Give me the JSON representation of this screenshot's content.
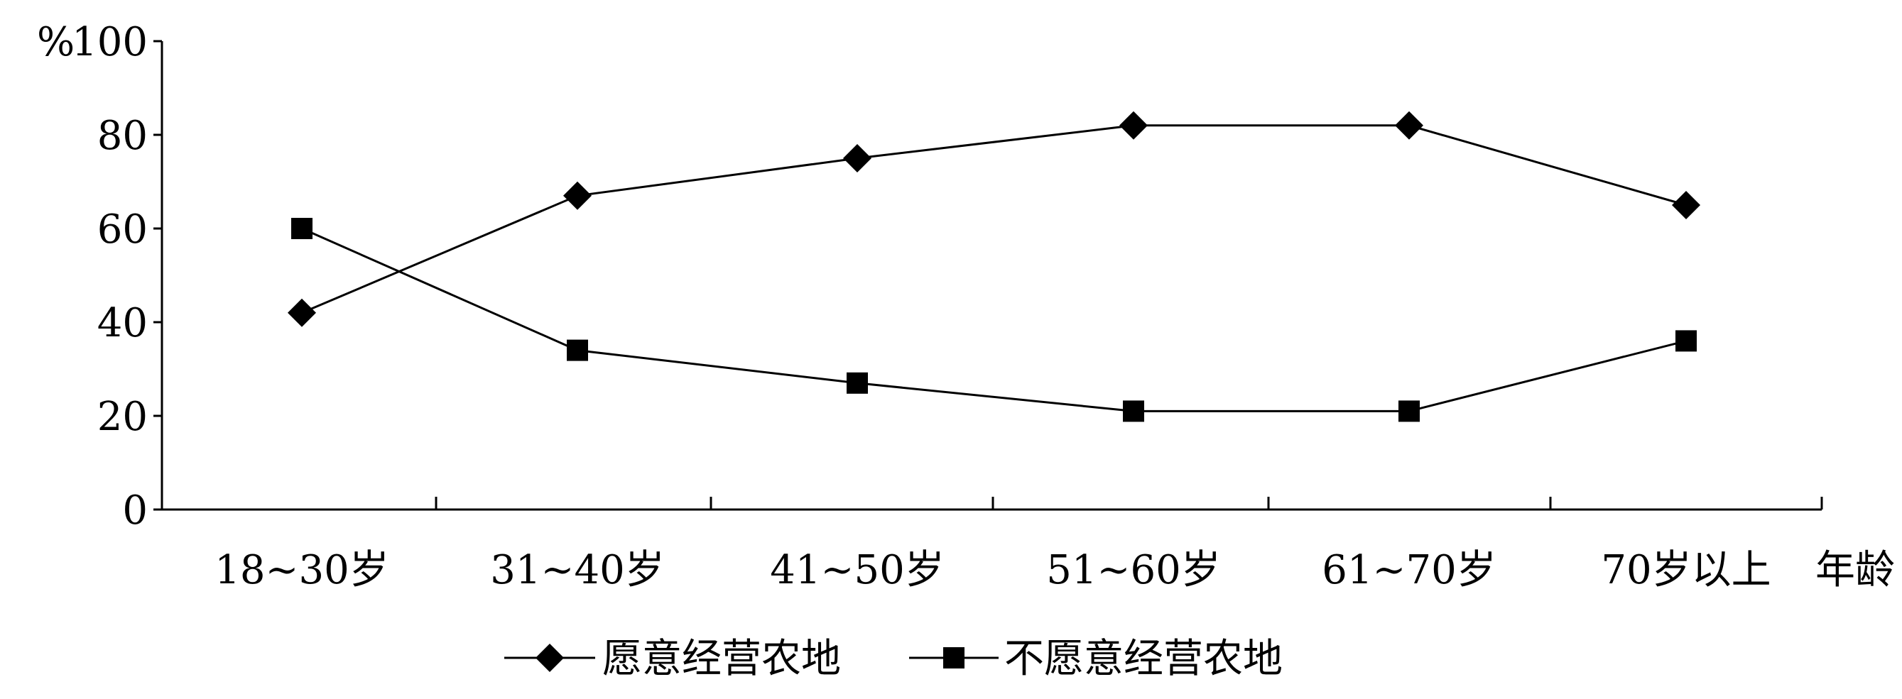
{
  "chart_data": {
    "type": "line",
    "ylabel": "%",
    "xlabel": "年龄",
    "ylim": [
      0,
      100
    ],
    "yticks": [
      0,
      20,
      40,
      60,
      80,
      100
    ],
    "categories": [
      "18~30岁",
      "31~40岁",
      "41~50岁",
      "51~60岁",
      "61~70岁",
      "70岁以上"
    ],
    "series": [
      {
        "name": "愿意经营农地",
        "marker": "diamond",
        "values": [
          42,
          67,
          75,
          82,
          82,
          65
        ]
      },
      {
        "name": "不愿意经营农地",
        "marker": "square",
        "values": [
          60,
          34,
          27,
          21,
          21,
          36
        ]
      }
    ],
    "legend_position": "bottom",
    "grid": false,
    "colors": {
      "line": "#000000",
      "background": "#ffffff"
    }
  }
}
